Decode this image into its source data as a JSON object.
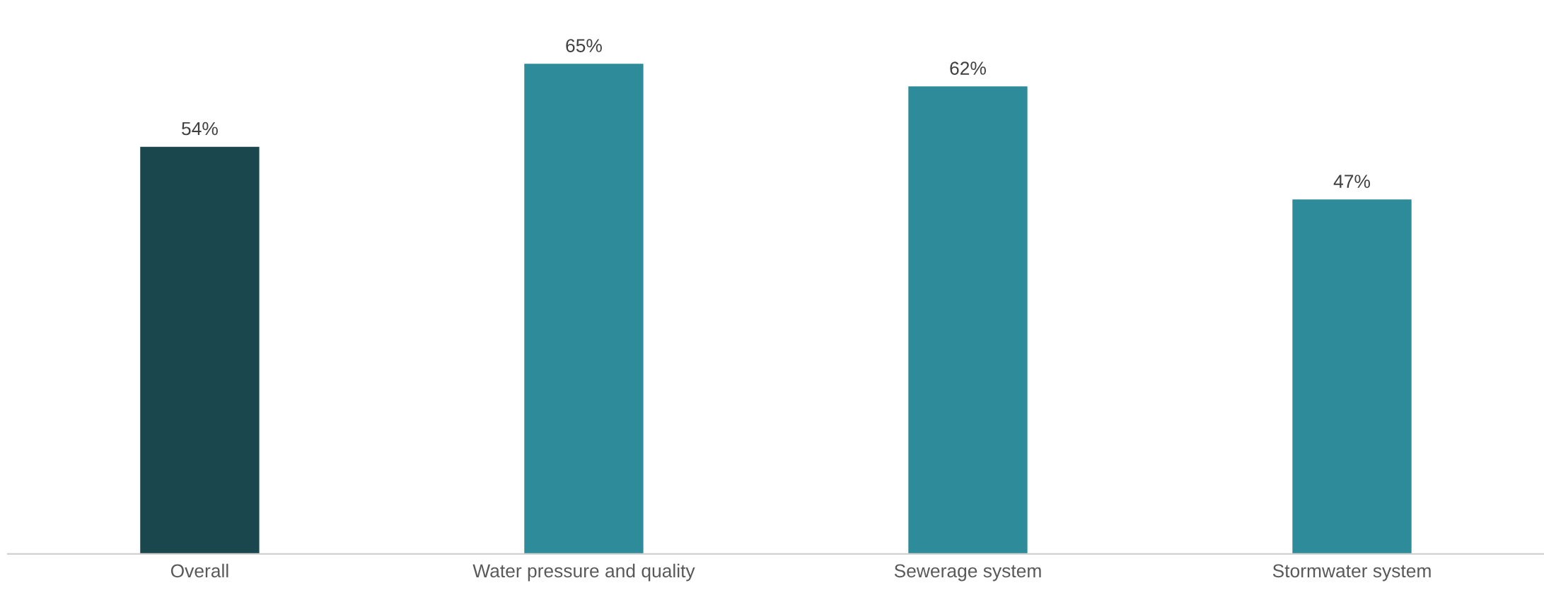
{
  "chart_data": {
    "type": "bar",
    "categories": [
      "Overall",
      "Water pressure and quality",
      "Sewerage system",
      "Stormwater system"
    ],
    "values": [
      54,
      65,
      62,
      47
    ],
    "colors": [
      "#1a474d",
      "#2e8b99",
      "#2e8b99",
      "#2e8b99"
    ],
    "value_labels": [
      "54%",
      "65%",
      "62%",
      "47%"
    ],
    "tick_labels": "x",
    "grid": false,
    "legend": false
  }
}
